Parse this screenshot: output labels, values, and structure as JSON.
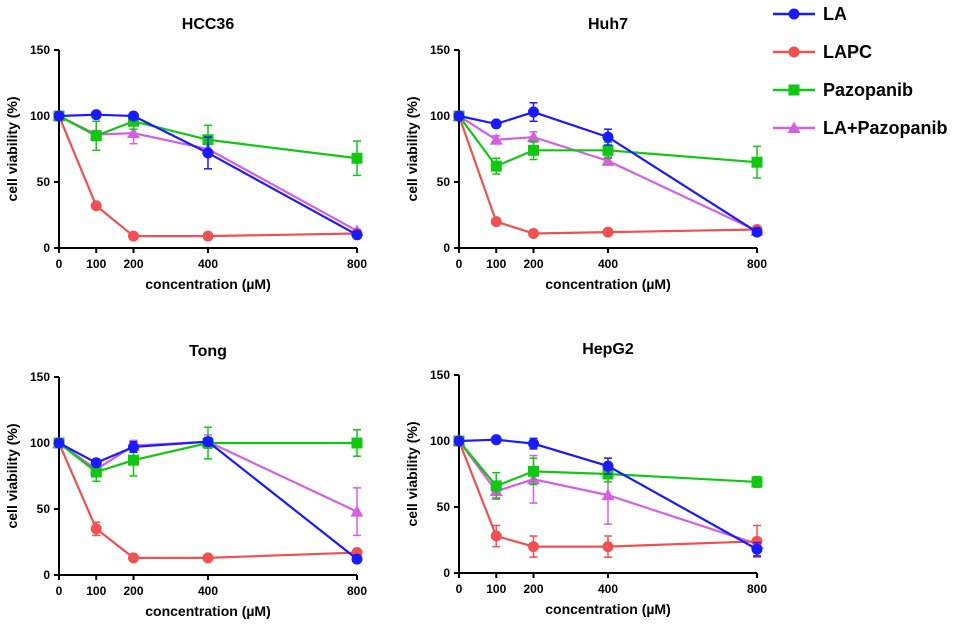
{
  "figure": {
    "legend": [
      {
        "name": "LA",
        "color": "#1a1aff",
        "marker": "circle"
      },
      {
        "name": "LAPC",
        "color": "#f05050",
        "marker": "circle"
      },
      {
        "name": "Pazopanib",
        "color": "#12c712",
        "marker": "square"
      },
      {
        "name": "LA+Pazopanib",
        "color": "#d65fe0",
        "marker": "triangle"
      }
    ]
  },
  "chart_data": [
    {
      "type": "line",
      "title": "HCC36",
      "xlabel": "concentration (µM)",
      "ylabel": "cell viability (%)",
      "x": [
        0,
        100,
        200,
        400,
        800
      ],
      "x_ticks": [
        "0",
        "100",
        "200",
        "400",
        "800"
      ],
      "y_ticks": [
        "0",
        "50",
        "100",
        "150"
      ],
      "ylim": [
        0,
        150
      ],
      "series": [
        {
          "name": "LA",
          "values": [
            100,
            101,
            100,
            72,
            10
          ],
          "errors": [
            0,
            2,
            2,
            12,
            2
          ]
        },
        {
          "name": "LAPC",
          "values": [
            100,
            32,
            9,
            9,
            11
          ],
          "errors": [
            0,
            2,
            1,
            1,
            1
          ]
        },
        {
          "name": "Pazopanib",
          "values": [
            100,
            85,
            96,
            82,
            68
          ],
          "errors": [
            0,
            11,
            6,
            11,
            13
          ]
        },
        {
          "name": "LA+Pazopanib",
          "values": [
            100,
            86,
            87,
            75,
            13
          ],
          "errors": [
            0,
            3,
            8,
            5,
            1
          ]
        }
      ]
    },
    {
      "type": "line",
      "title": "Huh7",
      "xlabel": "concentration (µM)",
      "ylabel": "cell viability (%)",
      "x": [
        0,
        100,
        200,
        400,
        800
      ],
      "x_ticks": [
        "0",
        "100",
        "200",
        "400",
        "800"
      ],
      "y_ticks": [
        "0",
        "50",
        "100",
        "150"
      ],
      "ylim": [
        0,
        150
      ],
      "series": [
        {
          "name": "LA",
          "values": [
            100,
            94,
            103,
            84,
            12
          ],
          "errors": [
            0,
            2,
            7,
            6,
            2
          ]
        },
        {
          "name": "LAPC",
          "values": [
            100,
            20,
            11,
            12,
            14
          ],
          "errors": [
            0,
            2,
            2,
            2,
            2
          ]
        },
        {
          "name": "Pazopanib",
          "values": [
            100,
            62,
            74,
            74,
            65
          ],
          "errors": [
            0,
            6,
            7,
            6,
            12
          ]
        },
        {
          "name": "LA+Pazopanib",
          "values": [
            100,
            82,
            84,
            66,
            13
          ],
          "errors": [
            0,
            3,
            4,
            3,
            2
          ]
        }
      ]
    },
    {
      "type": "line",
      "title": "Tong",
      "xlabel": "concentration (µM)",
      "ylabel": "cell viability (%)",
      "x": [
        0,
        100,
        200,
        400,
        800
      ],
      "x_ticks": [
        "0",
        "100",
        "200",
        "400",
        "800"
      ],
      "y_ticks": [
        "0",
        "50",
        "100",
        "150"
      ],
      "ylim": [
        0,
        150
      ],
      "series": [
        {
          "name": "LA",
          "values": [
            100,
            85,
            97,
            101,
            12
          ],
          "errors": [
            0,
            2,
            4,
            3,
            1
          ]
        },
        {
          "name": "LAPC",
          "values": [
            100,
            35,
            13,
            13,
            17
          ],
          "errors": [
            0,
            5,
            1,
            1,
            1
          ]
        },
        {
          "name": "Pazopanib",
          "values": [
            100,
            78,
            87,
            100,
            100
          ],
          "errors": [
            0,
            7,
            12,
            12,
            10
          ]
        },
        {
          "name": "LA+Pazopanib",
          "values": [
            100,
            80,
            98,
            101,
            48
          ],
          "errors": [
            0,
            3,
            4,
            5,
            18
          ]
        }
      ]
    },
    {
      "type": "line",
      "title": "HepG2",
      "xlabel": "concentration (µM)",
      "ylabel": "cell viability (%)",
      "x": [
        0,
        100,
        200,
        400,
        800
      ],
      "x_ticks": [
        "0",
        "100",
        "200",
        "400",
        "800"
      ],
      "y_ticks": [
        "0",
        "50",
        "100",
        "150"
      ],
      "ylim": [
        0,
        150
      ],
      "series": [
        {
          "name": "LA",
          "values": [
            100,
            101,
            98,
            81,
            18
          ],
          "errors": [
            0,
            2,
            4,
            6,
            5
          ]
        },
        {
          "name": "LAPC",
          "values": [
            100,
            28,
            20,
            20,
            24
          ],
          "errors": [
            0,
            8,
            8,
            8,
            12
          ]
        },
        {
          "name": "Pazopanib",
          "values": [
            100,
            66,
            77,
            75,
            69
          ],
          "errors": [
            0,
            10,
            10,
            6,
            4
          ]
        },
        {
          "name": "LA+Pazopanib",
          "values": [
            100,
            62,
            71,
            59,
            22
          ],
          "errors": [
            0,
            5,
            18,
            22,
            4
          ]
        }
      ]
    }
  ]
}
